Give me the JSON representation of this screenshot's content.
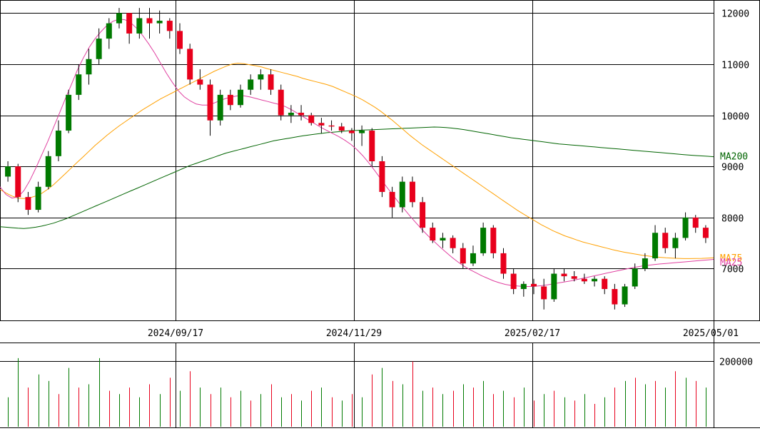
{
  "chart_data": [
    {
      "type": "candlestick",
      "y_ticks": [
        "12000",
        "11000",
        "10000",
        "9000",
        "8000",
        "7000"
      ],
      "y_tick_values": [
        12000,
        11000,
        10000,
        9000,
        8000,
        7000
      ],
      "x_tick_labels": [
        "2024/09/17",
        "2024/11/29",
        "2025/02/17",
        "2025/05/01"
      ],
      "ylim": [
        6000,
        12200
      ],
      "grid": true,
      "series_labels": {
        "ma200": "MA200",
        "ma75": "MA75",
        "ma25": "MA25"
      },
      "colors": {
        "up": "#007a00",
        "down": "#e8001c",
        "ma200": "#006400",
        "ma75": "#ffa000",
        "ma25": "#e040a0",
        "grid": "#000000"
      },
      "ma200": [
        7820,
        7810,
        7800,
        7790,
        7785,
        7795,
        7810,
        7830,
        7860,
        7890,
        7930,
        7970,
        8020,
        8070,
        8120,
        8170,
        8220,
        8270,
        8320,
        8370,
        8420,
        8470,
        8520,
        8570,
        8620,
        8670,
        8720,
        8770,
        8820,
        8870,
        8920,
        8970,
        9020,
        9060,
        9100,
        9140,
        9180,
        9220,
        9260,
        9290,
        9320,
        9350,
        9380,
        9410,
        9440,
        9470,
        9500,
        9520,
        9540,
        9560,
        9580,
        9600,
        9615,
        9630,
        9645,
        9660,
        9670,
        9680,
        9690,
        9700,
        9705,
        9710,
        9715,
        9720,
        9725,
        9730,
        9735,
        9740,
        9745,
        9750,
        9755,
        9760,
        9765,
        9770,
        9768,
        9760,
        9750,
        9735,
        9720,
        9700,
        9680,
        9660,
        9640,
        9620,
        9600,
        9580,
        9560,
        9545,
        9530,
        9515,
        9500,
        9485,
        9470,
        9455,
        9440,
        9430,
        9420,
        9410,
        9400,
        9390,
        9380,
        9370,
        9360,
        9350,
        9340,
        9330,
        9320,
        9310,
        9300,
        9290,
        9280,
        9270,
        9260,
        9250,
        9240,
        9230,
        9220,
        9212,
        9205,
        9198,
        9190
      ],
      "ma75": [
        8550,
        8480,
        8420,
        8380,
        8370,
        8385,
        8420,
        8470,
        8550,
        8640,
        8750,
        8860,
        8970,
        9080,
        9190,
        9300,
        9410,
        9510,
        9610,
        9700,
        9790,
        9870,
        9950,
        10030,
        10110,
        10180,
        10250,
        10320,
        10380,
        10440,
        10500,
        10560,
        10620,
        10680,
        10740,
        10800,
        10860,
        10910,
        10960,
        11000,
        11020,
        11010,
        10990,
        10970,
        10945,
        10910,
        10880,
        10850,
        10820,
        10790,
        10760,
        10720,
        10690,
        10660,
        10630,
        10600,
        10560,
        10510,
        10460,
        10410,
        10360,
        10300,
        10230,
        10160,
        10080,
        9990,
        9900,
        9800,
        9700,
        9600,
        9510,
        9420,
        9340,
        9260,
        9180,
        9100,
        9020,
        8940,
        8860,
        8780,
        8700,
        8620,
        8540,
        8460,
        8380,
        8300,
        8220,
        8140,
        8070,
        8000,
        7930,
        7860,
        7800,
        7740,
        7690,
        7640,
        7600,
        7560,
        7520,
        7490,
        7460,
        7430,
        7400,
        7370,
        7345,
        7320,
        7300,
        7280,
        7260,
        7245,
        7230,
        7220,
        7210,
        7205,
        7200,
        7195,
        7195,
        7198,
        7200,
        7205,
        7212
      ],
      "ma25": [
        8600,
        8450,
        8380,
        8400,
        8520,
        8720,
        8960,
        9220,
        9480,
        9760,
        10040,
        10330,
        10600,
        10880,
        11120,
        11330,
        11500,
        11640,
        11760,
        11840,
        11880,
        11870,
        11810,
        11700,
        11560,
        11400,
        11220,
        11020,
        10820,
        10640,
        10480,
        10360,
        10280,
        10220,
        10200,
        10200,
        10240,
        10290,
        10330,
        10360,
        10380,
        10380,
        10360,
        10330,
        10300,
        10270,
        10240,
        10210,
        10170,
        10110,
        10040,
        9970,
        9900,
        9830,
        9760,
        9700,
        9640,
        9580,
        9510,
        9430,
        9330,
        9210,
        9070,
        8920,
        8760,
        8600,
        8450,
        8300,
        8160,
        8020,
        7890,
        7760,
        7640,
        7530,
        7420,
        7320,
        7220,
        7130,
        7050,
        6980,
        6920,
        6860,
        6810,
        6760,
        6720,
        6690,
        6670,
        6660,
        6650,
        6650,
        6655,
        6665,
        6680,
        6700,
        6720,
        6740,
        6760,
        6785,
        6810,
        6835,
        6860,
        6885,
        6910,
        6935,
        6960,
        6985,
        7010,
        7030,
        7050,
        7065,
        7080,
        7090,
        7100,
        7110,
        7120,
        7130,
        7140,
        7150,
        7160,
        7170,
        7180
      ],
      "candles": [
        [
          8800,
          9100,
          8700,
          9000
        ],
        [
          9000,
          9050,
          8300,
          8400
        ],
        [
          8400,
          8500,
          8050,
          8150
        ],
        [
          8150,
          8700,
          8100,
          8600
        ],
        [
          8600,
          9300,
          8550,
          9200
        ],
        [
          9200,
          9900,
          9100,
          9700
        ],
        [
          9700,
          10500,
          9650,
          10400
        ],
        [
          10400,
          11000,
          10300,
          10800
        ],
        [
          10800,
          11300,
          10600,
          11100
        ],
        [
          11100,
          11700,
          11000,
          11500
        ],
        [
          11500,
          11900,
          11300,
          11800
        ],
        [
          11800,
          12100,
          11700,
          12000
        ],
        [
          12000,
          12000,
          11400,
          11600
        ],
        [
          11600,
          12100,
          11500,
          11900
        ],
        [
          11900,
          12100,
          11500,
          11800
        ],
        [
          11800,
          12050,
          11600,
          11850
        ],
        [
          11850,
          11900,
          11500,
          11650
        ],
        [
          11650,
          11800,
          11200,
          11300
        ],
        [
          11300,
          11400,
          10600,
          10700
        ],
        [
          10700,
          10900,
          10500,
          10600
        ],
        [
          10600,
          10700,
          9600,
          9900
        ],
        [
          9900,
          10500,
          9800,
          10400
        ],
        [
          10400,
          10500,
          10100,
          10200
        ],
        [
          10200,
          10600,
          10150,
          10500
        ],
        [
          10500,
          10800,
          10400,
          10700
        ],
        [
          10700,
          10900,
          10500,
          10800
        ],
        [
          10800,
          10900,
          10400,
          10500
        ],
        [
          10500,
          10600,
          9900,
          10000
        ],
        [
          10000,
          10200,
          9850,
          10050
        ],
        [
          10050,
          10200,
          9900,
          10000
        ],
        [
          10000,
          10050,
          9800,
          9850
        ],
        [
          9850,
          9950,
          9650,
          9800
        ],
        [
          9800,
          9900,
          9700,
          9780
        ],
        [
          9780,
          9850,
          9650,
          9700
        ],
        [
          9700,
          9750,
          9500,
          9650
        ],
        [
          9650,
          9800,
          9400,
          9700
        ],
        [
          9700,
          9750,
          9000,
          9100
        ],
        [
          9100,
          9200,
          8400,
          8500
        ],
        [
          8500,
          8600,
          8000,
          8200
        ],
        [
          8200,
          8800,
          8100,
          8700
        ],
        [
          8700,
          8800,
          8200,
          8300
        ],
        [
          8300,
          8400,
          7700,
          7800
        ],
        [
          7800,
          7900,
          7500,
          7550
        ],
        [
          7550,
          7700,
          7400,
          7600
        ],
        [
          7600,
          7650,
          7300,
          7400
        ],
        [
          7400,
          7500,
          7000,
          7100
        ],
        [
          7100,
          7450,
          7050,
          7300
        ],
        [
          7300,
          7900,
          7250,
          7800
        ],
        [
          7800,
          7850,
          7200,
          7300
        ],
        [
          7300,
          7400,
          6800,
          6900
        ],
        [
          6900,
          7000,
          6500,
          6600
        ],
        [
          6600,
          6750,
          6450,
          6700
        ],
        [
          6700,
          6800,
          6500,
          6650
        ],
        [
          6650,
          6800,
          6200,
          6400
        ],
        [
          6400,
          7000,
          6350,
          6900
        ],
        [
          6900,
          7000,
          6750,
          6850
        ],
        [
          6850,
          6950,
          6750,
          6800
        ],
        [
          6800,
          6900,
          6700,
          6750
        ],
        [
          6750,
          6850,
          6650,
          6800
        ],
        [
          6800,
          6850,
          6500,
          6600
        ],
        [
          6600,
          6700,
          6200,
          6300
        ],
        [
          6300,
          6700,
          6250,
          6650
        ],
        [
          6650,
          7100,
          6600,
          7000
        ],
        [
          7000,
          7300,
          6950,
          7200
        ],
        [
          7200,
          7850,
          7150,
          7700
        ],
        [
          7700,
          7800,
          7300,
          7400
        ],
        [
          7400,
          7700,
          7200,
          7600
        ],
        [
          7600,
          8100,
          7550,
          8000
        ],
        [
          8000,
          8050,
          7700,
          7800
        ],
        [
          7800,
          7850,
          7500,
          7600
        ]
      ],
      "volume_ticks": [
        "200000"
      ],
      "volume_tick_values": [
        200000
      ],
      "volume_max": 260000,
      "volume": [
        90000,
        210000,
        120000,
        160000,
        140000,
        100000,
        180000,
        120000,
        130000,
        210000,
        110000,
        100000,
        120000,
        90000,
        130000,
        100000,
        150000,
        110000,
        170000,
        120000,
        100000,
        120000,
        90000,
        110000,
        80000,
        100000,
        130000,
        90000,
        100000,
        80000,
        110000,
        120000,
        90000,
        80000,
        100000,
        90000,
        160000,
        180000,
        140000,
        130000,
        200000,
        110000,
        120000,
        100000,
        110000,
        130000,
        120000,
        140000,
        100000,
        110000,
        90000,
        120000,
        80000,
        100000,
        110000,
        90000,
        80000,
        100000,
        70000,
        90000,
        120000,
        140000,
        150000,
        130000,
        140000,
        120000,
        170000,
        150000,
        140000,
        120000
      ],
      "volume_up": [
        true,
        true,
        false,
        true,
        true,
        false,
        true,
        false,
        true,
        true,
        false,
        true,
        false,
        true,
        false,
        true,
        false,
        true,
        false,
        true,
        false,
        true,
        false,
        true,
        false,
        true,
        false,
        true,
        false,
        true,
        false,
        true,
        false,
        true,
        false,
        true,
        false,
        true,
        false,
        true,
        false,
        true,
        false,
        true,
        false,
        true,
        false,
        true,
        false,
        true,
        false,
        true,
        false,
        true,
        false,
        true,
        false,
        true,
        false,
        true,
        false,
        true,
        false,
        true,
        false,
        true,
        false,
        true,
        false,
        true
      ]
    }
  ]
}
